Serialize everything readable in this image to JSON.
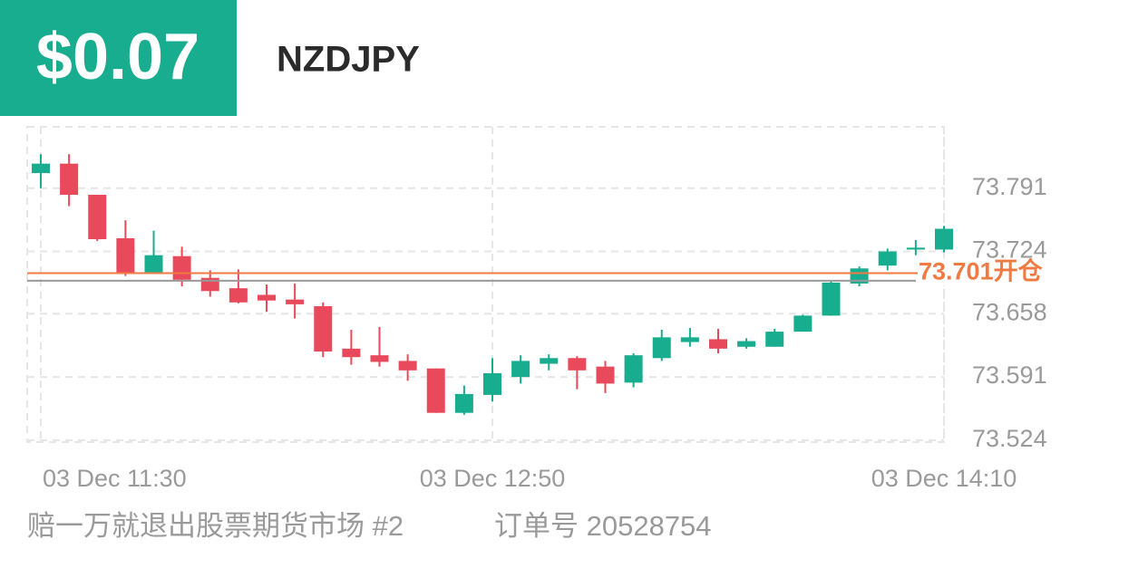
{
  "header": {
    "profit": "$0.07",
    "symbol": "NZDJPY"
  },
  "chart_data": {
    "type": "candlestick",
    "categories": [
      "03 Dec  11:30",
      null,
      null,
      null,
      null,
      null,
      null,
      null,
      null,
      null,
      null,
      null,
      null,
      null,
      null,
      null,
      "03 Dec  12:50",
      null,
      null,
      null,
      null,
      null,
      null,
      null,
      null,
      null,
      null,
      null,
      null,
      null,
      null,
      null,
      "03 Dec  14:10"
    ],
    "open": [
      73.807,
      73.817,
      73.784,
      73.738,
      73.702,
      73.719,
      73.696,
      73.685,
      73.678,
      73.673,
      73.666,
      73.621,
      73.614,
      73.608,
      73.6,
      73.553,
      73.572,
      73.591,
      73.605,
      73.611,
      73.602,
      73.585,
      73.611,
      73.628,
      73.631,
      73.623,
      73.623,
      73.639,
      73.656,
      73.69,
      73.709,
      73.726,
      73.726
    ],
    "high": [
      73.827,
      73.827,
      73.784,
      73.757,
      73.746,
      73.729,
      73.704,
      73.705,
      73.689,
      73.69,
      73.67,
      73.641,
      73.644,
      73.615,
      73.6,
      73.582,
      73.611,
      73.614,
      73.615,
      73.613,
      73.608,
      73.616,
      73.641,
      73.643,
      73.642,
      73.632,
      73.642,
      73.657,
      73.692,
      73.708,
      73.727,
      73.736,
      73.751
    ],
    "low": [
      73.791,
      73.772,
      73.735,
      73.698,
      73.701,
      73.687,
      73.676,
      73.669,
      73.66,
      73.653,
      73.612,
      73.604,
      73.602,
      73.587,
      73.553,
      73.551,
      73.565,
      73.584,
      73.598,
      73.578,
      73.574,
      73.58,
      73.608,
      73.623,
      73.616,
      73.621,
      73.623,
      73.639,
      73.656,
      73.687,
      73.704,
      73.72,
      73.723
    ],
    "close": [
      73.817,
      73.784,
      73.737,
      73.701,
      73.72,
      73.694,
      73.682,
      73.67,
      73.672,
      73.668,
      73.618,
      73.612,
      73.607,
      73.598,
      73.553,
      73.573,
      73.595,
      73.608,
      73.611,
      73.598,
      73.584,
      73.614,
      73.633,
      73.633,
      73.621,
      73.629,
      73.639,
      73.656,
      73.691,
      73.706,
      73.724,
      73.728,
      73.748
    ],
    "up_color": "#17ad8e",
    "down_color": "#e84a5b",
    "ylim": [
      73.522,
      73.856
    ],
    "yticks": [
      73.524,
      73.591,
      73.658,
      73.724,
      73.791
    ],
    "entry_line": {
      "value": 73.701,
      "label": "73.701开仓",
      "color": "#f07a42"
    },
    "current_price": 73.693,
    "current_color": "#999999",
    "grid": true
  },
  "footer": {
    "account": "赔一万就退出股票期货市场 #2",
    "order": "订单号 20528754"
  }
}
